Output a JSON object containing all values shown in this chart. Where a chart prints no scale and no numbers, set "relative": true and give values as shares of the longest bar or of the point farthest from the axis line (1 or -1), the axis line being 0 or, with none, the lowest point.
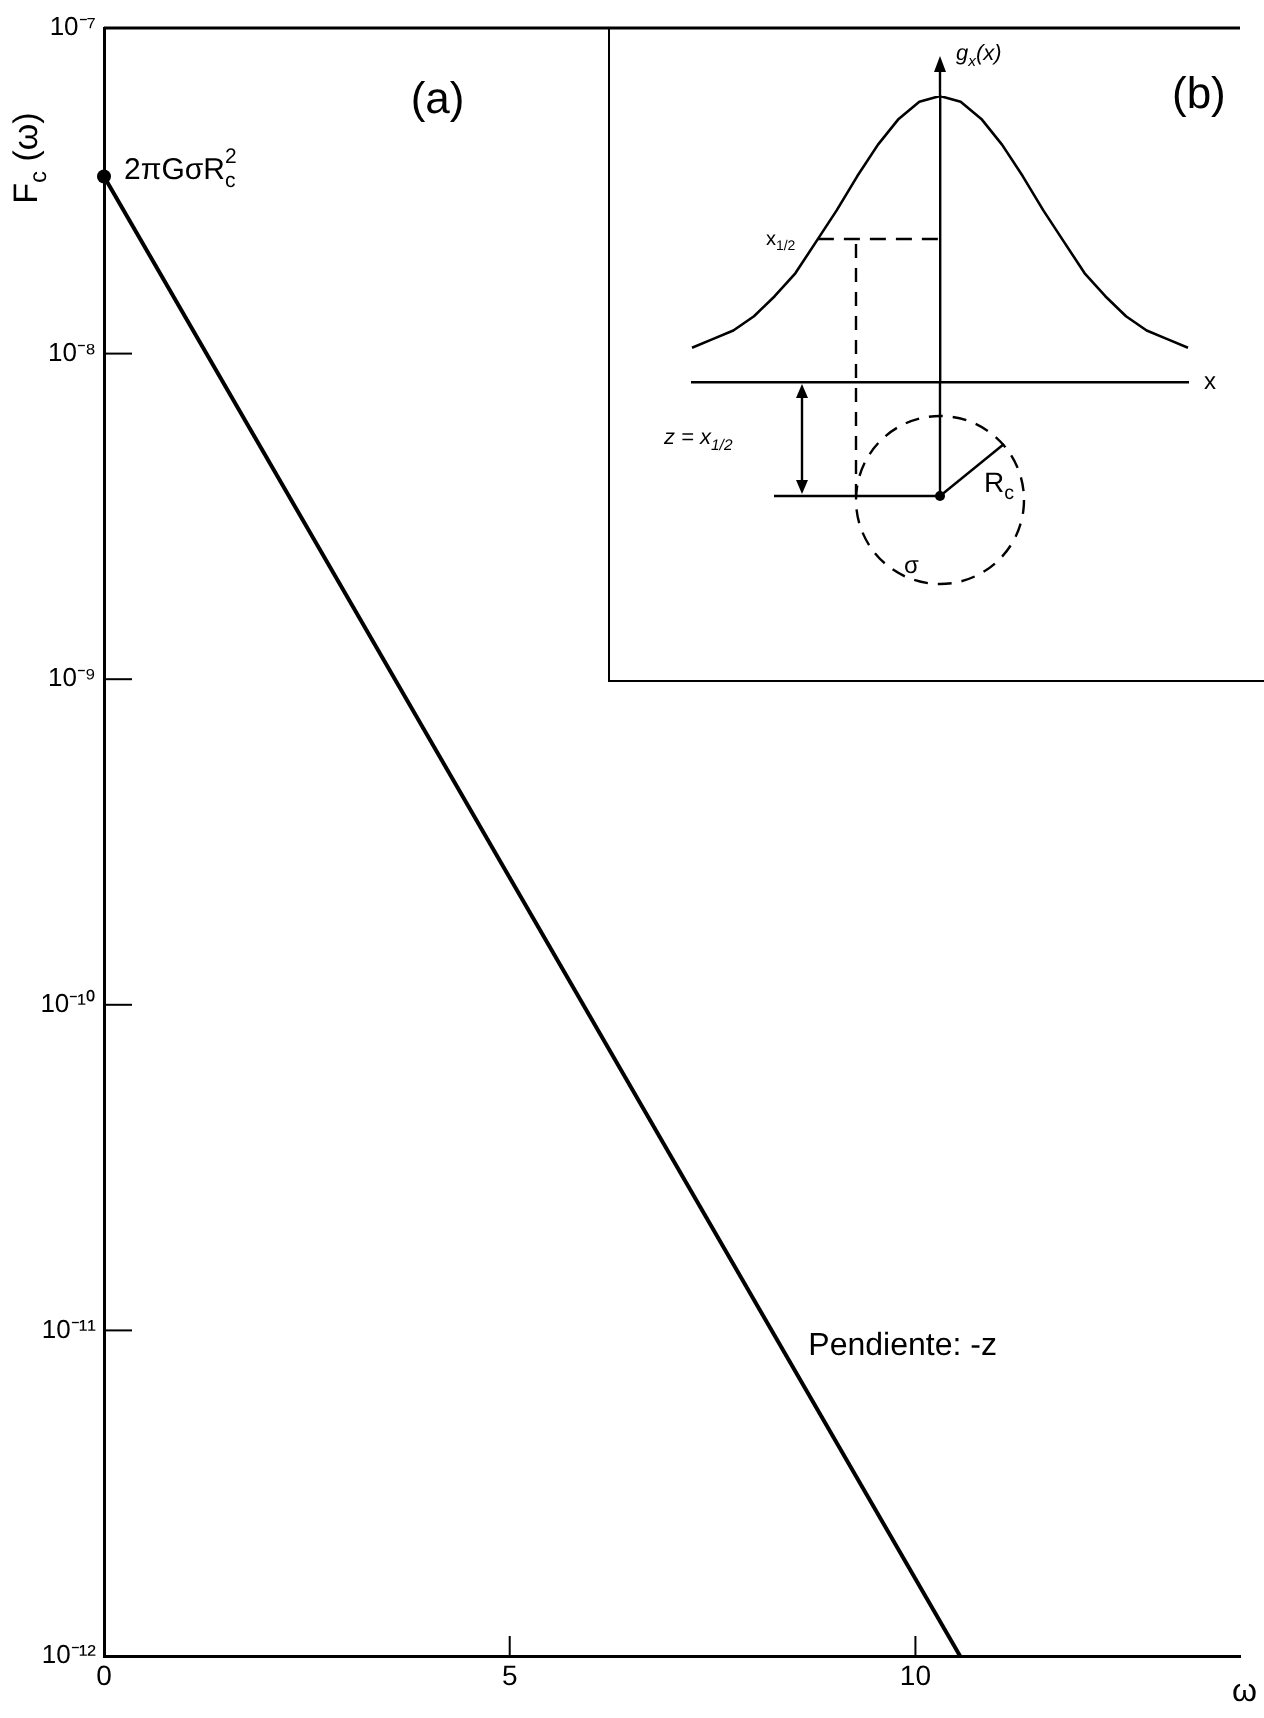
{
  "chart_data": [
    {
      "type": "line",
      "xlabel": "ω",
      "ylabel": "F$_{c}$ (ω)",
      "x": [
        0,
        10.55
      ],
      "series": [
        {
          "color": "#000000",
          "values": [
            3.5e-08,
            1e-12
          ]
        }
      ],
      "log": "y",
      "xlim": [
        0,
        14
      ],
      "xticks": [
        0,
        5,
        10
      ],
      "ylim": [
        1e-12,
        1e-07
      ],
      "yticks": [
        {
          "value": 1e-12,
          "label": "10⁻¹²"
        },
        {
          "value": 1e-11,
          "label": "10⁻¹¹"
        },
        {
          "value": 1e-10,
          "label": "10⁻¹⁰"
        },
        {
          "value": 1e-09,
          "label": "10⁻⁹"
        },
        {
          "value": 1e-08,
          "label": "10⁻⁸"
        },
        {
          "value": 1e-07,
          "label": "10⁻⁷"
        }
      ],
      "grid": false,
      "legend": false,
      "line_style": "solid",
      "annotations": [
        "(a)",
        {
          "text": "2πGσR$_{c}$$^{2}$",
          "x": 0,
          "y": 3.5e-08
        },
        "Pendiente: -z"
      ]
    },
    {
      "type": "line",
      "relative": true,
      "xlabel": "x",
      "ylabel": "g$_{x}$(x)",
      "categories": [
        null,
        null,
        null,
        null,
        null,
        null,
        null,
        null,
        null,
        null,
        null,
        null,
        null,
        null,
        null,
        null,
        null,
        null,
        null,
        null,
        null,
        null,
        null,
        null,
        null
      ],
      "series": [
        {
          "color": "#000000",
          "values": [
            0.12,
            0.15,
            0.18,
            0.23,
            0.3,
            0.38,
            0.49,
            0.6,
            0.72,
            0.83,
            0.92,
            0.98,
            1,
            0.98,
            0.92,
            0.83,
            0.72,
            0.6,
            0.49,
            0.38,
            0.3,
            0.23,
            0.18,
            0.15,
            0.12
          ]
        }
      ],
      "grid": false,
      "legend": false,
      "line_style": "solid",
      "ref_lines": [
        {
          "axis": "y",
          "value": 0.5,
          "label": "x$_{1/2}$",
          "line_style": "dashed"
        }
      ],
      "annotations": [
        "(b)",
        "z = x$_{1/2}$",
        "R$_{c}$",
        "σ"
      ]
    }
  ]
}
